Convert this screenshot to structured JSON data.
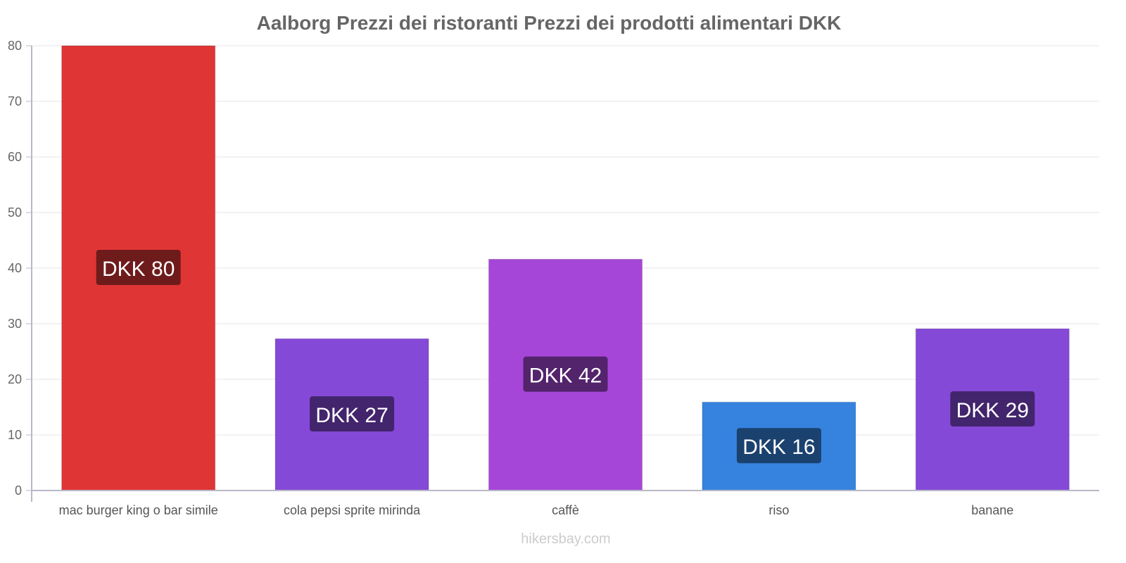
{
  "chart_data": {
    "type": "bar",
    "title": "Aalborg Prezzi dei ristoranti Prezzi dei prodotti alimentari DKK",
    "categories": [
      "mac burger king o bar simile",
      "cola pepsi sprite mirinda",
      "caffè",
      "riso",
      "banane"
    ],
    "values": [
      80,
      27.3,
      41.6,
      15.9,
      29.1
    ],
    "data_labels": [
      "DKK 80",
      "DKK 27",
      "DKK 42",
      "DKK 16",
      "DKK 29"
    ],
    "colors": [
      "#e03535",
      "#8549d8",
      "#a646d8",
      "#3683df",
      "#8549d8"
    ],
    "label_colors": [
      "#6e1b1b",
      "#42256c",
      "#53236c",
      "#1b416f",
      "#42256c"
    ],
    "yticks": [
      0,
      10,
      20,
      30,
      40,
      50,
      60,
      70,
      80
    ],
    "ylim": [
      0,
      80
    ],
    "xlabel": "",
    "ylabel": "",
    "grid": true
  },
  "watermark": "hikersbay.com"
}
